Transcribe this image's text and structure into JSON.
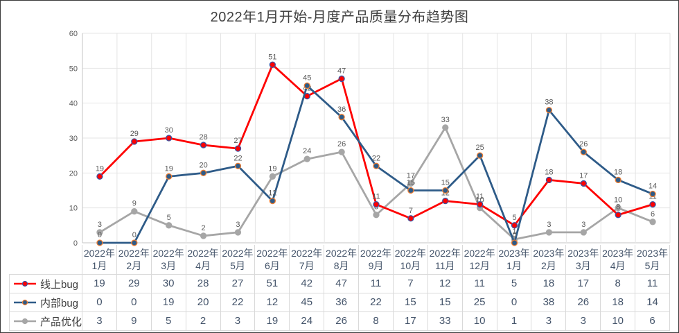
{
  "title": "2022年1月开始-月度产品质量分布趋势图",
  "chart_data": {
    "type": "line",
    "title": "2022年1月开始-月度产品质量分布趋势图",
    "categories": [
      {
        "year": "2022年",
        "month": "1月"
      },
      {
        "year": "2022年",
        "month": "2月"
      },
      {
        "year": "2022年",
        "month": "3月"
      },
      {
        "year": "2022年",
        "month": "4月"
      },
      {
        "year": "2022年",
        "month": "5月"
      },
      {
        "year": "2022年",
        "month": "6月"
      },
      {
        "year": "2022年",
        "month": "7月"
      },
      {
        "year": "2022年",
        "month": "8月"
      },
      {
        "year": "2022年",
        "month": "9月"
      },
      {
        "year": "2022年",
        "month": "10月"
      },
      {
        "year": "2022年",
        "month": "11月"
      },
      {
        "year": "2022年",
        "month": "12月"
      },
      {
        "year": "2023年",
        "month": "1月"
      },
      {
        "year": "2023年",
        "month": "2月"
      },
      {
        "year": "2023年",
        "month": "3月"
      },
      {
        "year": "2023年",
        "month": "4月"
      },
      {
        "year": "2023年",
        "month": "5月"
      }
    ],
    "series": [
      {
        "name": "线上bug",
        "color": "#FE0000",
        "marker_stroke": "#3B54A3",
        "z": 1,
        "values": [
          19,
          29,
          30,
          28,
          27,
          51,
          42,
          47,
          11,
          7,
          12,
          11,
          5,
          18,
          17,
          8,
          11
        ]
      },
      {
        "name": "内部bug",
        "color": "#2E5B88",
        "marker_stroke": "#ED7D31",
        "z": 2,
        "values": [
          0,
          0,
          19,
          20,
          22,
          12,
          45,
          36,
          22,
          15,
          15,
          25,
          0,
          38,
          26,
          18,
          14
        ]
      },
      {
        "name": "产品优化",
        "color": "#A6A6A6",
        "marker_stroke": "#A6A6A6",
        "z": 0,
        "values": [
          3,
          9,
          5,
          2,
          3,
          19,
          24,
          26,
          8,
          17,
          33,
          10,
          1,
          3,
          3,
          10,
          6
        ]
      }
    ],
    "ylim": [
      0,
      60
    ],
    "yticks": [
      0,
      10,
      20,
      30,
      40,
      50,
      60
    ],
    "grid": true,
    "legend_position": "data-table-left",
    "data_label_color": "#595959",
    "ytick_color": "#595959",
    "gridline_color": "#E4E4E4",
    "axis_color": "#C6C6C6",
    "table_border_color": "#D9D9D9",
    "table_text_color": "#44546A"
  }
}
